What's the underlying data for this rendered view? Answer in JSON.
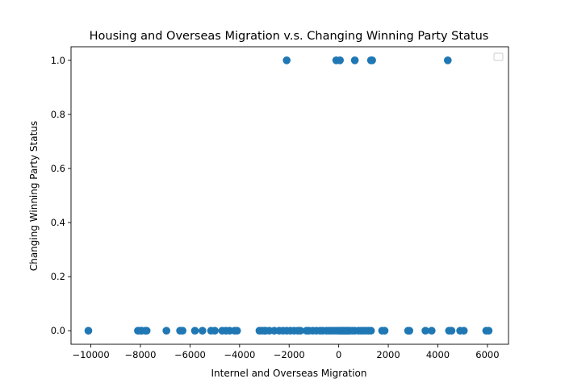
{
  "chart_data": {
    "type": "scatter",
    "title": "Housing and Overseas Migration v.s. Changing Winning Party Status",
    "xlabel": "Internel and Overseas Migration",
    "ylabel": "Changing Winning Party Status",
    "xlim": [
      -10800,
      6850
    ],
    "ylim": [
      -0.05,
      1.05
    ],
    "xticks": [
      -10000,
      -8000,
      -6000,
      -4000,
      -2000,
      0,
      2000,
      4000,
      6000
    ],
    "xtick_labels": [
      "−10000",
      "−8000",
      "−6000",
      "−4000",
      "−2000",
      "0",
      "2000",
      "4000",
      "6000"
    ],
    "yticks": [
      0.0,
      0.2,
      0.4,
      0.6,
      0.8,
      1.0
    ],
    "ytick_labels": [
      "0.0",
      "0.2",
      "0.4",
      "0.6",
      "0.8",
      "1.0"
    ],
    "grid": false,
    "legend": "top-right",
    "marker_color": "#1f77b4",
    "series": [
      {
        "x": [
          -2100,
          -100,
          50,
          650,
          1300,
          1350,
          4400,
          -10100,
          -8100,
          -8000,
          -7950,
          -7800,
          -7750,
          -6950,
          -6400,
          -6300,
          -5800,
          -5500,
          -5150,
          -5000,
          -4700,
          -4550,
          -4400,
          -4200,
          -4100,
          -3200,
          -3100,
          -3000,
          -2950,
          -2800,
          -2600,
          -2400,
          -2250,
          -2100,
          -1950,
          -1800,
          -1650,
          -1550,
          -1300,
          -1200,
          -1050,
          -900,
          -750,
          -650,
          -500,
          -400,
          -300,
          -200,
          -100,
          0,
          50,
          100,
          150,
          200,
          250,
          300,
          350,
          400,
          450,
          550,
          650,
          800,
          900,
          1000,
          1100,
          1200,
          1300,
          1750,
          1850,
          2800,
          2850,
          3500,
          3750,
          4450,
          4550,
          4900,
          5050,
          5950,
          6050
        ],
        "y": [
          1,
          1,
          1,
          1,
          1,
          1,
          1,
          0,
          0,
          0,
          0,
          0,
          0,
          0,
          0,
          0,
          0,
          0,
          0,
          0,
          0,
          0,
          0,
          0,
          0,
          0,
          0,
          0,
          0,
          0,
          0,
          0,
          0,
          0,
          0,
          0,
          0,
          0,
          0,
          0,
          0,
          0,
          0,
          0,
          0,
          0,
          0,
          0,
          0,
          0,
          0,
          0,
          0,
          0,
          0,
          0,
          0,
          0,
          0,
          0,
          0,
          0,
          0,
          0,
          0,
          0,
          0,
          0,
          0,
          0,
          0,
          0,
          0,
          0,
          0,
          0,
          0,
          0,
          0
        ]
      }
    ]
  }
}
